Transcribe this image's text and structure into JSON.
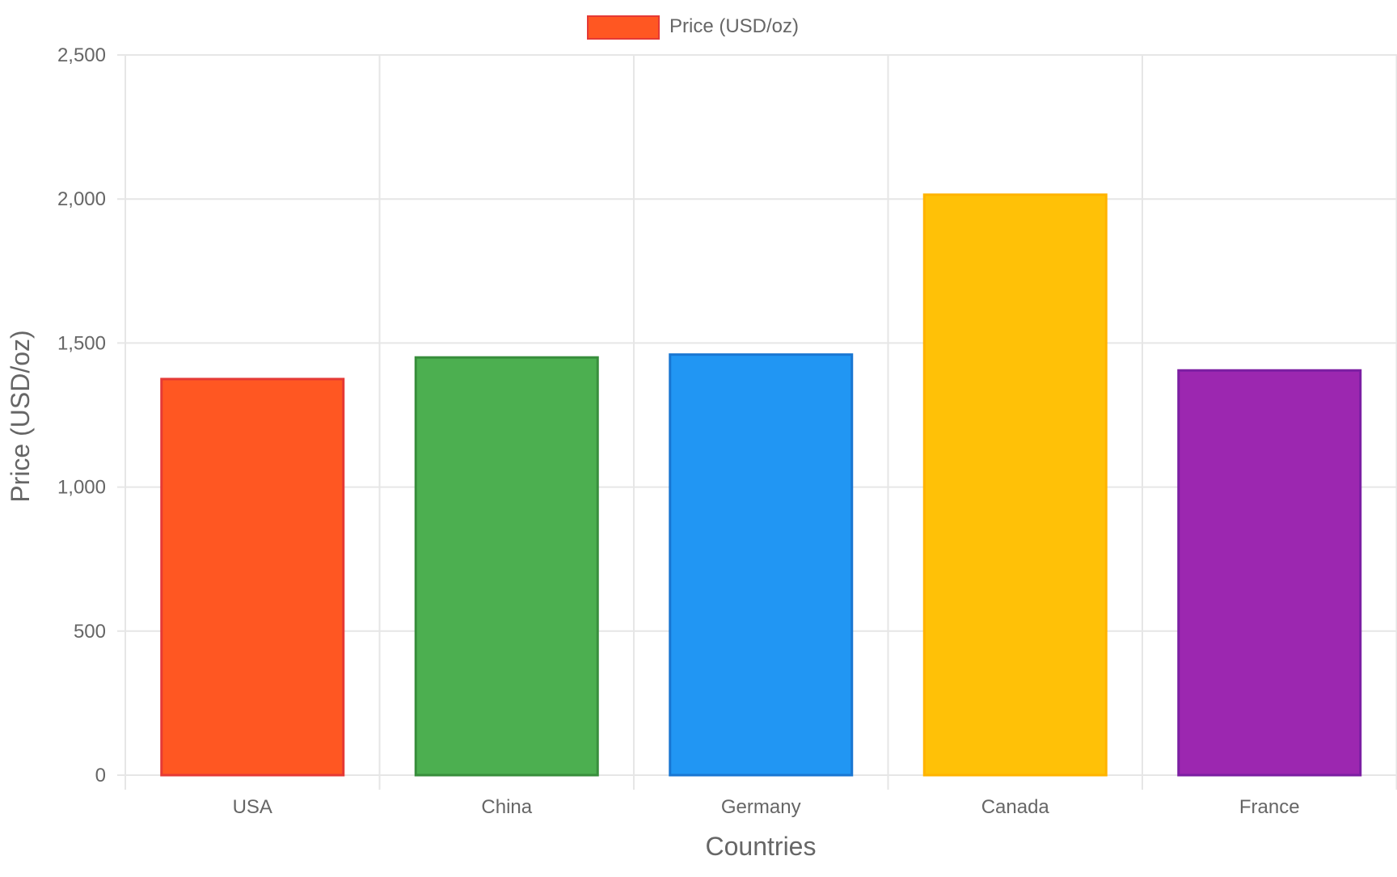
{
  "chart_data": {
    "type": "bar",
    "title": "",
    "xlabel": "Countries",
    "ylabel": "Price (USD/oz)",
    "categories": [
      "USA",
      "China",
      "Germany",
      "Canada",
      "France"
    ],
    "series": [
      {
        "name": "Price (USD/oz)",
        "values": [
          1375,
          1450,
          1460,
          2015,
          1405
        ]
      }
    ],
    "ylim": [
      0,
      2500
    ],
    "y_ticks": [
      0,
      500,
      1000,
      1500,
      2000,
      2500
    ],
    "y_tick_labels": [
      "0",
      "500",
      "1,000",
      "1,500",
      "2,000",
      "2,500"
    ],
    "grid": true,
    "legend_position": "top-center",
    "colors": {
      "legend_swatch": "#FF5722",
      "legend_swatch_border": "#E53935",
      "bars": [
        "#FF5722",
        "#4CAF50",
        "#2196F3",
        "#FFC107",
        "#9C27B0"
      ],
      "bar_borders": [
        "#E53935",
        "#388E3C",
        "#1976D2",
        "#FFB300",
        "#7B1FA2"
      ],
      "grid": "#e6e6e6",
      "axis_text": "#666666"
    }
  }
}
